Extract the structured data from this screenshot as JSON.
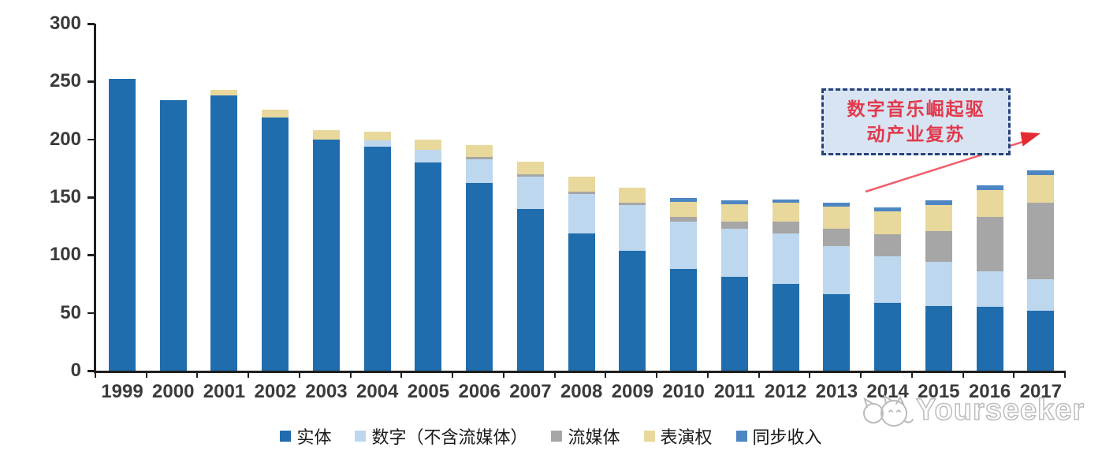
{
  "watermark": {
    "text": "Yourseeker",
    "logo": "cat-logo-icon",
    "color": "#bcbcbc"
  },
  "annotation": {
    "line1": "数字音乐崛起驱",
    "line2": "动产业复苏",
    "full_text": "数字音乐崛起驱动产业复苏",
    "box_fill": "#d8e4f2",
    "box_border": "#27427c",
    "text_color": "#e2394b",
    "arrow_color": "#ef5f6b"
  },
  "chart_data": {
    "type": "bar",
    "stacked": true,
    "title": "",
    "xlabel": "",
    "ylabel": "",
    "ylim": [
      0,
      300
    ],
    "y_ticks": [
      0,
      50,
      100,
      150,
      200,
      250,
      300
    ],
    "grid": false,
    "legend_position": "bottom",
    "categories": [
      1999,
      2000,
      2001,
      2002,
      2003,
      2004,
      2005,
      2006,
      2007,
      2008,
      2009,
      2010,
      2011,
      2012,
      2013,
      2014,
      2015,
      2016,
      2017
    ],
    "series": [
      {
        "name": "实体",
        "color": "#1f6dad",
        "values": [
          252,
          234,
          238,
          219,
          200,
          194,
          180,
          162,
          140,
          119,
          104,
          88,
          81,
          75,
          66,
          59,
          56,
          55,
          52
        ]
      },
      {
        "name": "数字（不含流媒体）",
        "color": "#bdd7ee",
        "values": [
          0,
          0,
          0,
          0,
          0,
          5,
          11,
          21,
          28,
          34,
          39,
          41,
          42,
          44,
          42,
          40,
          38,
          31,
          27
        ]
      },
      {
        "name": "流媒体",
        "color": "#a6a6a6",
        "values": [
          0,
          0,
          0,
          0,
          0,
          0,
          0,
          2,
          2,
          2,
          2,
          4,
          6,
          10,
          15,
          19,
          27,
          47,
          66
        ]
      },
      {
        "name": "表演权",
        "color": "#e8d89c",
        "values": [
          0,
          0,
          5,
          7,
          8,
          8,
          9,
          10,
          11,
          13,
          13,
          13,
          15,
          16,
          19,
          20,
          22,
          23,
          24
        ]
      },
      {
        "name": "同步收入",
        "color": "#4e86c4",
        "values": [
          0,
          0,
          0,
          0,
          0,
          0,
          0,
          0,
          0,
          0,
          0,
          3,
          3,
          3,
          3,
          3,
          4,
          4,
          4
        ]
      }
    ],
    "totals": [
      252,
      234,
      243,
      226,
      208,
      207,
      200,
      195,
      181,
      168,
      158,
      149,
      147,
      148,
      145,
      141,
      147,
      160,
      173
    ]
  }
}
